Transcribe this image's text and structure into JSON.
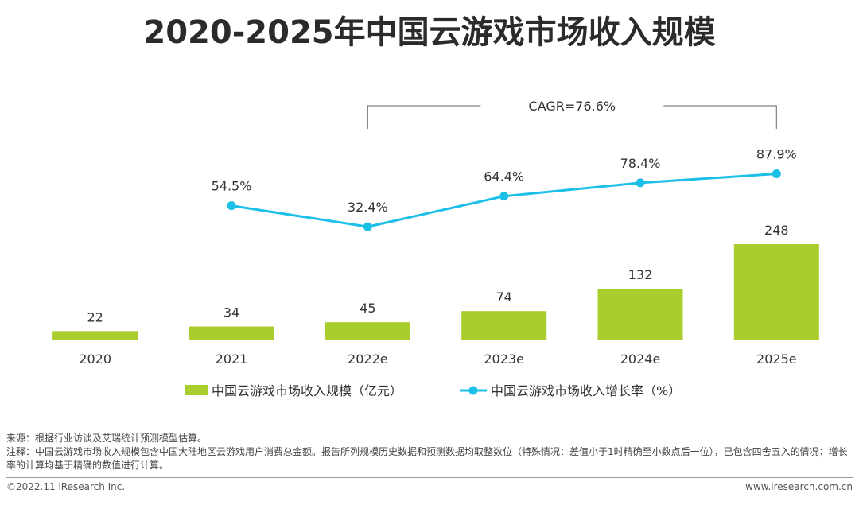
{
  "header": {
    "title": "2020-2025年中国云游戏市场收入规模"
  },
  "chart_data": {
    "type": "bar+line",
    "title": "2020-2025年中国云游戏市场收入规模",
    "categories": [
      "2020",
      "2021",
      "2022e",
      "2023e",
      "2024e",
      "2025e"
    ],
    "series": [
      {
        "name": "中国云游戏市场收入规模（亿元）",
        "type": "bar",
        "color": "#a8cd2d",
        "values": [
          22,
          34,
          45,
          74,
          132,
          248
        ],
        "labels": [
          "22",
          "34",
          "45",
          "74",
          "132",
          "248"
        ]
      },
      {
        "name": "中国云游戏市场收入增长率（%）",
        "type": "line",
        "color": "#1cbfe8",
        "values": [
          null,
          54.5,
          32.4,
          64.4,
          78.4,
          87.9
        ],
        "labels": [
          "",
          "54.5%",
          "32.4%",
          "64.4%",
          "78.4%",
          "87.9%"
        ]
      }
    ],
    "annotation": {
      "text": "CAGR=76.6%",
      "from": "2022e",
      "to": "2025e"
    },
    "legend": "bottom-center"
  },
  "notes": {
    "source": "来源：根据行业访谈及艾瑞统计预测模型估算。",
    "note": "注释：中国云游戏市场收入规模包含中国大陆地区云游戏用户消费总金额。报告所列规模历史数据和预测数据均取整数位（特殊情况：差值小于1时精确至小数点后一位），已包含四舍五入的情况；增长率的计算均基于精确的数值进行计算。"
  },
  "footer": {
    "copyright": "©2022.11 iResearch Inc.",
    "website": "www.iresearch.com.cn"
  }
}
